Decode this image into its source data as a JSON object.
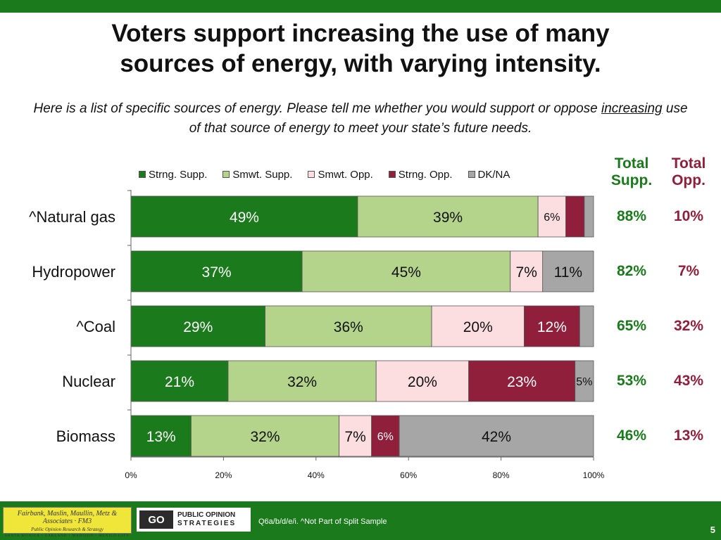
{
  "title_line1": "Voters support increasing the use of many",
  "title_line2": "sources of energy, with varying intensity.",
  "subtitle_part1": "Here is a list of specific sources of energy.  Please tell me whether you would support or oppose ",
  "subtitle_underlined": "increasing",
  "subtitle_part2": " use of that source of energy to meet your state’s future needs.",
  "total_supp_header_line1": "Total",
  "total_supp_header_line2": "Supp.",
  "total_opp_header_line1": "Total",
  "total_opp_header_line2": "Opp.",
  "footnote": "Q6a/b/d/e/i. ^Not Part of Split Sample",
  "page_number": "5",
  "logos": {
    "fm3_line1": "Fairbank, Maslin, Maullin, Metz & Associates · FM3",
    "fm3_line2": "Public Opinion Research & Strategy",
    "fm3_line3": "SANTA MONICA • OAKLAND • MADISON • MEXICO CITY",
    "pos_mark": "GO",
    "pos_line1": "PUBLIC OPINION",
    "pos_line2": "STRATEGIES"
  },
  "colors": {
    "strong_support": "#1b7a1b",
    "somewhat_support": "#b3d48a",
    "somewhat_oppose": "#fcdde0",
    "strong_oppose": "#8f1f3a",
    "dk_na": "#a6a6a6",
    "total_supp": "#1b7a1b",
    "total_opp": "#8f1f3a"
  },
  "chart_data": {
    "type": "bar",
    "orientation": "horizontal",
    "stacked": true,
    "categories": [
      "^Natural gas",
      "Hydropower",
      "^Coal",
      "Nuclear",
      "Biomass"
    ],
    "series": [
      {
        "name": "Strng. Supp.",
        "color": "#1b7a1b",
        "values": [
          49,
          37,
          29,
          21,
          13
        ]
      },
      {
        "name": "Smwt. Supp.",
        "color": "#b3d48a",
        "values": [
          39,
          45,
          36,
          32,
          32
        ]
      },
      {
        "name": "Smwt. Opp.",
        "color": "#fcdde0",
        "values": [
          6,
          7,
          20,
          20,
          7
        ]
      },
      {
        "name": "Strng. Opp.",
        "color": "#8f1f3a",
        "values": [
          4,
          0,
          12,
          23,
          6
        ]
      },
      {
        "name": "DK/NA",
        "color": "#a6a6a6",
        "values": [
          2,
          11,
          3,
          5,
          42
        ]
      }
    ],
    "data_labels": [
      [
        "49%",
        "39%",
        "6%",
        "",
        ""
      ],
      [
        "37%",
        "45%",
        "7%",
        "",
        "11%"
      ],
      [
        "29%",
        "36%",
        "20%",
        "12%",
        ""
      ],
      [
        "21%",
        "32%",
        "20%",
        "23%",
        "5%"
      ],
      [
        "13%",
        "32%",
        "7%",
        "6%",
        "42%"
      ]
    ],
    "total_support": [
      "88%",
      "82%",
      "65%",
      "53%",
      "46%"
    ],
    "total_oppose": [
      "10%",
      "7%",
      "32%",
      "43%",
      "13%"
    ],
    "x_ticks": [
      "0%",
      "20%",
      "40%",
      "60%",
      "80%",
      "100%"
    ],
    "xlim": [
      0,
      100
    ],
    "legend_position": "top",
    "grid": false
  }
}
